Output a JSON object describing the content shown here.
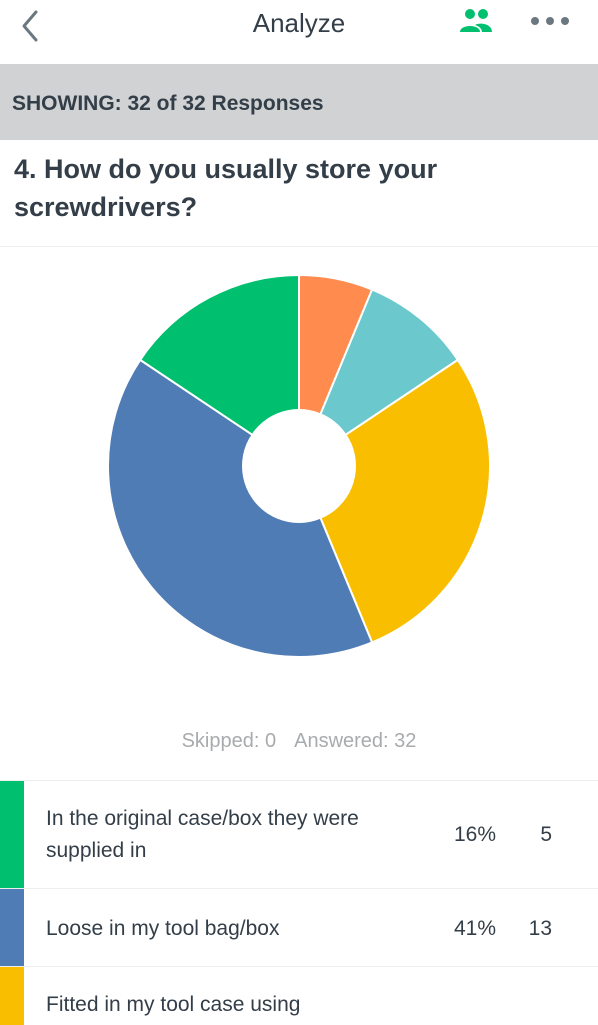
{
  "nav": {
    "title": "Analyze",
    "back_icon": "chevron-left-icon",
    "people_icon": "people-icon",
    "more_icon": "more-horizontal-icon",
    "accent_color": "#00bf6f"
  },
  "filter": {
    "showing": "SHOWING: 32 of 32 Responses"
  },
  "question": {
    "title": "4. How do you usually store your screwdrivers?"
  },
  "stats": {
    "skipped": "Skipped: 0",
    "answered": "Answered: 32"
  },
  "answers": [
    {
      "label": "In the original case/box they were supplied in",
      "percent": "16%",
      "count": "5",
      "color": "#00bf6f"
    },
    {
      "label": "Loose in my tool bag/box",
      "percent": "41%",
      "count": "13",
      "color": "#507cb6"
    },
    {
      "label": "Fitted in my tool case using",
      "percent": "",
      "count": "",
      "color": "#f9be00"
    }
  ],
  "chart_data": {
    "type": "pie",
    "donut": true,
    "slices": [
      {
        "value": 2,
        "color": "#ff8b4f"
      },
      {
        "value": 3,
        "color": "#6bc8cd"
      },
      {
        "value": 9,
        "color": "#f9be00"
      },
      {
        "value": 13,
        "color": "#507cb6"
      },
      {
        "value": 5,
        "color": "#00bf6f"
      }
    ],
    "total": 32,
    "start": "12 o'clock",
    "direction": "clockwise"
  }
}
